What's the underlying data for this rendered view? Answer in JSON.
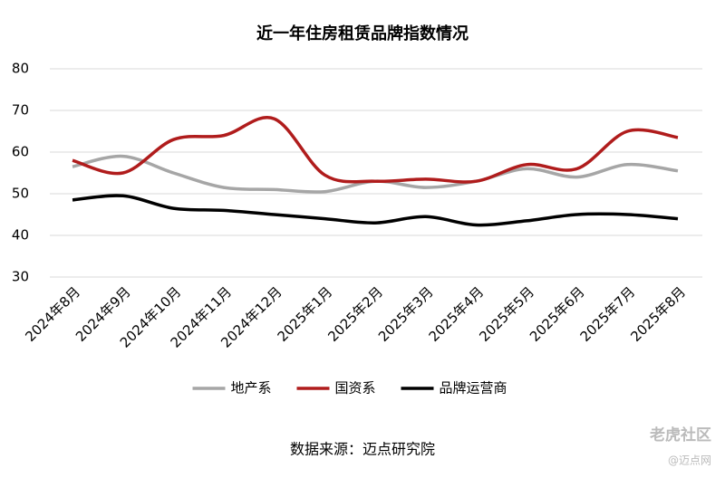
{
  "chart_data": {
    "type": "line",
    "title": "近一年住房租赁品牌指数情况",
    "categories": [
      "2024年8月",
      "2024年9月",
      "2024年10月",
      "2024年11月",
      "2024年12月",
      "2025年1月",
      "2025年2月",
      "2025年3月",
      "2025年4月",
      "2025年5月",
      "2025年6月",
      "2025年7月",
      "2025年8月"
    ],
    "series": [
      {
        "name": "地产系",
        "color": "#a6a6a6",
        "values": [
          56.5,
          59,
          55,
          51.5,
          51,
          50.5,
          53,
          51.5,
          53,
          56,
          54,
          57,
          55.5
        ]
      },
      {
        "name": "国资系",
        "color": "#b01c1c",
        "values": [
          58,
          55,
          63,
          64,
          68,
          54.5,
          53,
          53.5,
          53,
          57,
          56,
          65,
          63.5
        ]
      },
      {
        "name": "品牌运营商",
        "color": "#000000",
        "values": [
          48.5,
          49.5,
          46.5,
          46,
          45,
          44,
          43,
          44.5,
          42.5,
          43.5,
          45,
          45,
          44
        ]
      }
    ],
    "ylim": [
      30,
      80
    ],
    "yticks": [
      30,
      40,
      50,
      60,
      70,
      80
    ],
    "grid": true,
    "smooth": true,
    "legend": "bottom",
    "source": "数据来源：迈点研究院",
    "watermarks": [
      "老虎社区",
      "@迈点网"
    ]
  }
}
